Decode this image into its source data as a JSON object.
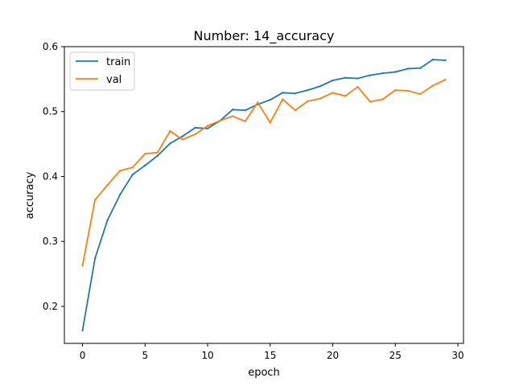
{
  "chart_data": {
    "type": "line",
    "title": "Number: 14_accuracy",
    "xlabel": "epoch",
    "ylabel": "accuracy",
    "xlim": [
      -1.45,
      30.45
    ],
    "ylim": [
      0.143,
      0.6
    ],
    "xticks": [
      0,
      5,
      10,
      15,
      20,
      25,
      30
    ],
    "xtick_labels": [
      "0",
      "5",
      "10",
      "15",
      "20",
      "25",
      "30"
    ],
    "yticks": [
      0.2,
      0.3,
      0.4,
      0.5,
      0.6
    ],
    "ytick_labels": [
      "0.2",
      "0.3",
      "0.4",
      "0.5",
      "0.6"
    ],
    "grid": false,
    "legend_position": "top-left",
    "x": [
      0,
      1,
      2,
      3,
      4,
      5,
      6,
      7,
      8,
      9,
      10,
      11,
      12,
      13,
      14,
      15,
      16,
      17,
      18,
      19,
      20,
      21,
      22,
      23,
      24,
      25,
      26,
      27,
      28,
      29
    ],
    "series": [
      {
        "name": "train",
        "color": "#1f77b4",
        "values": [
          0.163,
          0.274,
          0.333,
          0.372,
          0.403,
          0.417,
          0.432,
          0.451,
          0.462,
          0.475,
          0.474,
          0.486,
          0.503,
          0.502,
          0.511,
          0.518,
          0.529,
          0.528,
          0.533,
          0.539,
          0.548,
          0.552,
          0.551,
          0.556,
          0.559,
          0.561,
          0.566,
          0.567,
          0.58,
          0.579
        ]
      },
      {
        "name": "val",
        "color": "#ff7f0e",
        "values": [
          0.263,
          0.364,
          0.387,
          0.409,
          0.414,
          0.435,
          0.437,
          0.47,
          0.457,
          0.465,
          0.478,
          0.486,
          0.493,
          0.485,
          0.514,
          0.483,
          0.519,
          0.502,
          0.516,
          0.52,
          0.529,
          0.524,
          0.538,
          0.515,
          0.519,
          0.533,
          0.532,
          0.527,
          0.54,
          0.549
        ]
      }
    ]
  }
}
